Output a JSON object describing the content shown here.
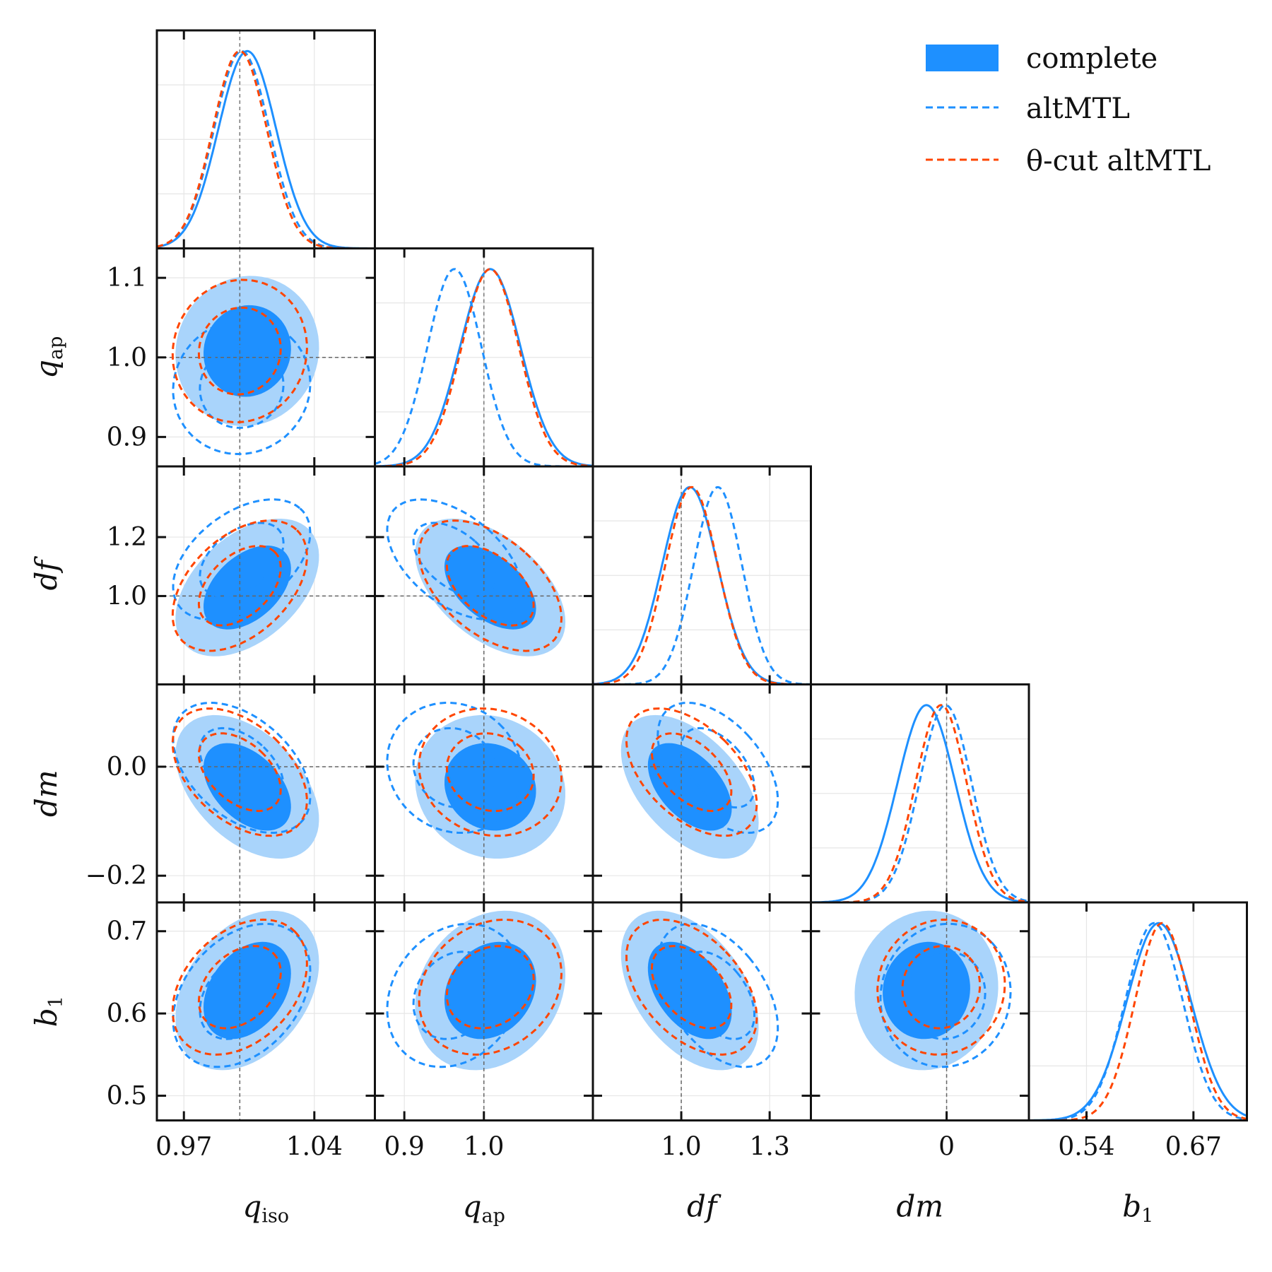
{
  "chart_data": {
    "type": "corner",
    "parameters": [
      {
        "key": "qiso",
        "symbol": "q",
        "sub": "iso",
        "range": [
          0.9555,
          1.0725
        ],
        "ticks": [
          0.97,
          1.04
        ],
        "tick_labels": [
          "0.97",
          "1.04"
        ],
        "truth": 1.0
      },
      {
        "key": "qap",
        "symbol": "q",
        "sub": "ap",
        "range": [
          0.863,
          1.137
        ],
        "ticks": [
          0.9,
          1.0
        ],
        "tick_labels": [
          "0.9",
          "1.0"
        ],
        "truth": 1.0,
        "y_ticks": [
          0.9,
          1.0,
          1.1
        ],
        "y_tick_labels": [
          "0.9",
          "1.0",
          "1.1"
        ]
      },
      {
        "key": "df",
        "symbol": "df",
        "sub": "",
        "range": [
          0.7,
          1.44
        ],
        "ticks": [
          1.0,
          1.3
        ],
        "tick_labels": [
          "1.0",
          "1.3"
        ],
        "truth": 1.0,
        "y_ticks": [
          1.0,
          1.2
        ],
        "y_tick_labels": [
          "1.0",
          "1.2"
        ]
      },
      {
        "key": "dm",
        "symbol": "dm",
        "sub": "",
        "range": [
          -0.249,
          0.151
        ],
        "ticks": [
          0.0
        ],
        "tick_labels": [
          "0"
        ],
        "truth": 0.0,
        "y_ticks": [
          -0.2,
          0.0
        ],
        "y_tick_labels": [
          "−0.2",
          "0.0"
        ]
      },
      {
        "key": "b1",
        "symbol": "b",
        "sub": "1",
        "range": [
          0.47,
          0.735
        ],
        "ticks": [
          0.54,
          0.67
        ],
        "tick_labels": [
          "0.54",
          "0.67"
        ],
        "truth": null,
        "y_ticks": [
          0.5,
          0.6,
          0.7
        ],
        "y_tick_labels": [
          "0.5",
          "0.6",
          "0.7"
        ]
      }
    ],
    "series": [
      {
        "name": "complete",
        "style": "filled",
        "color": "#1e90ff",
        "color_light": "#a9d4fb",
        "mean": [
          1.004,
          1.008,
          1.029,
          -0.037,
          0.628
        ],
        "sigma": [
          0.0155,
          0.038,
          0.094,
          0.053,
          0.039
        ]
      },
      {
        "name": "altMTL",
        "style": "dashed",
        "color": "#1e90ff",
        "mean": [
          1.001,
          0.963,
          1.124,
          -0.002,
          0.622
        ],
        "sigma": [
          0.0148,
          0.034,
          0.082,
          0.048,
          0.035
        ]
      },
      {
        "name": "θ-cut altMTL",
        "style": "dashed",
        "color": "#ff4500",
        "mean": [
          1.0,
          1.008,
          1.035,
          -0.01,
          0.632
        ],
        "sigma": [
          0.0145,
          0.036,
          0.089,
          0.047,
          0.033
        ]
      }
    ],
    "correlations": {
      "1,0": 0.05,
      "2,0": 0.45,
      "2,1": -0.5,
      "3,0": -0.45,
      "3,1": -0.1,
      "3,2": -0.5,
      "4,0": 0.35,
      "4,1": 0.2,
      "4,2": -0.45,
      "4,3": 0.05
    },
    "contour_levels": [
      "68%",
      "95%"
    ],
    "legend": {
      "position": "top-right",
      "entries": [
        "complete",
        "altMTL",
        "θ-cut altMTL"
      ]
    }
  }
}
